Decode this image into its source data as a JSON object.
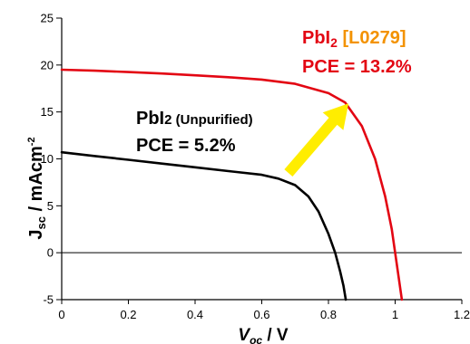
{
  "chart_data": {
    "type": "line",
    "xlim": [
      0,
      1.2
    ],
    "ylim": [
      -5,
      25
    ],
    "x_ticks": [
      "0",
      "0.2",
      "0.4",
      "0.6",
      "0.8",
      "1",
      "1.2"
    ],
    "y_ticks": [
      "-5",
      "0",
      "5",
      "10",
      "15",
      "20",
      "25"
    ],
    "xlabel": {
      "main": "V",
      "sub": "oc",
      "unit": " / V"
    },
    "ylabel": {
      "main": "J",
      "sub": "sc",
      "unit": " / mAcm",
      "sup": "-2"
    },
    "grid": false,
    "zero_line": true,
    "series": [
      {
        "color": "#000000",
        "points": [
          [
            0,
            10.7
          ],
          [
            0.1,
            10.3
          ],
          [
            0.2,
            9.9
          ],
          [
            0.3,
            9.5
          ],
          [
            0.4,
            9.1
          ],
          [
            0.5,
            8.7
          ],
          [
            0.6,
            8.3
          ],
          [
            0.65,
            7.9
          ],
          [
            0.7,
            7.2
          ],
          [
            0.74,
            6.0
          ],
          [
            0.77,
            4.4
          ],
          [
            0.8,
            2.0
          ],
          [
            0.82,
            0.0
          ],
          [
            0.835,
            -2.0
          ],
          [
            0.845,
            -3.5
          ],
          [
            0.852,
            -5.0
          ]
        ]
      },
      {
        "color": "#e30613",
        "points": [
          [
            0,
            19.5
          ],
          [
            0.1,
            19.4
          ],
          [
            0.2,
            19.25
          ],
          [
            0.3,
            19.1
          ],
          [
            0.4,
            18.9
          ],
          [
            0.5,
            18.7
          ],
          [
            0.6,
            18.45
          ],
          [
            0.7,
            18.0
          ],
          [
            0.8,
            17.0
          ],
          [
            0.85,
            16.0
          ],
          [
            0.9,
            13.5
          ],
          [
            0.94,
            10.0
          ],
          [
            0.97,
            6.0
          ],
          [
            0.99,
            2.5
          ],
          [
            1.0,
            0.0
          ],
          [
            1.01,
            -2.5
          ],
          [
            1.02,
            -5.0
          ]
        ]
      }
    ],
    "annotations": {
      "black": {
        "name": "PbI",
        "sub": "2",
        "qualifier": " (Unpurified)",
        "pce": "PCE = 5.2%"
      },
      "red": {
        "name": "PbI",
        "sub": "2",
        "tag": " [L0279]",
        "pce": "PCE = 13.2%"
      }
    },
    "colors": {
      "red": "#e30613",
      "orange": "#f39200",
      "arrow": "#ffed00",
      "black": "#000000"
    }
  }
}
